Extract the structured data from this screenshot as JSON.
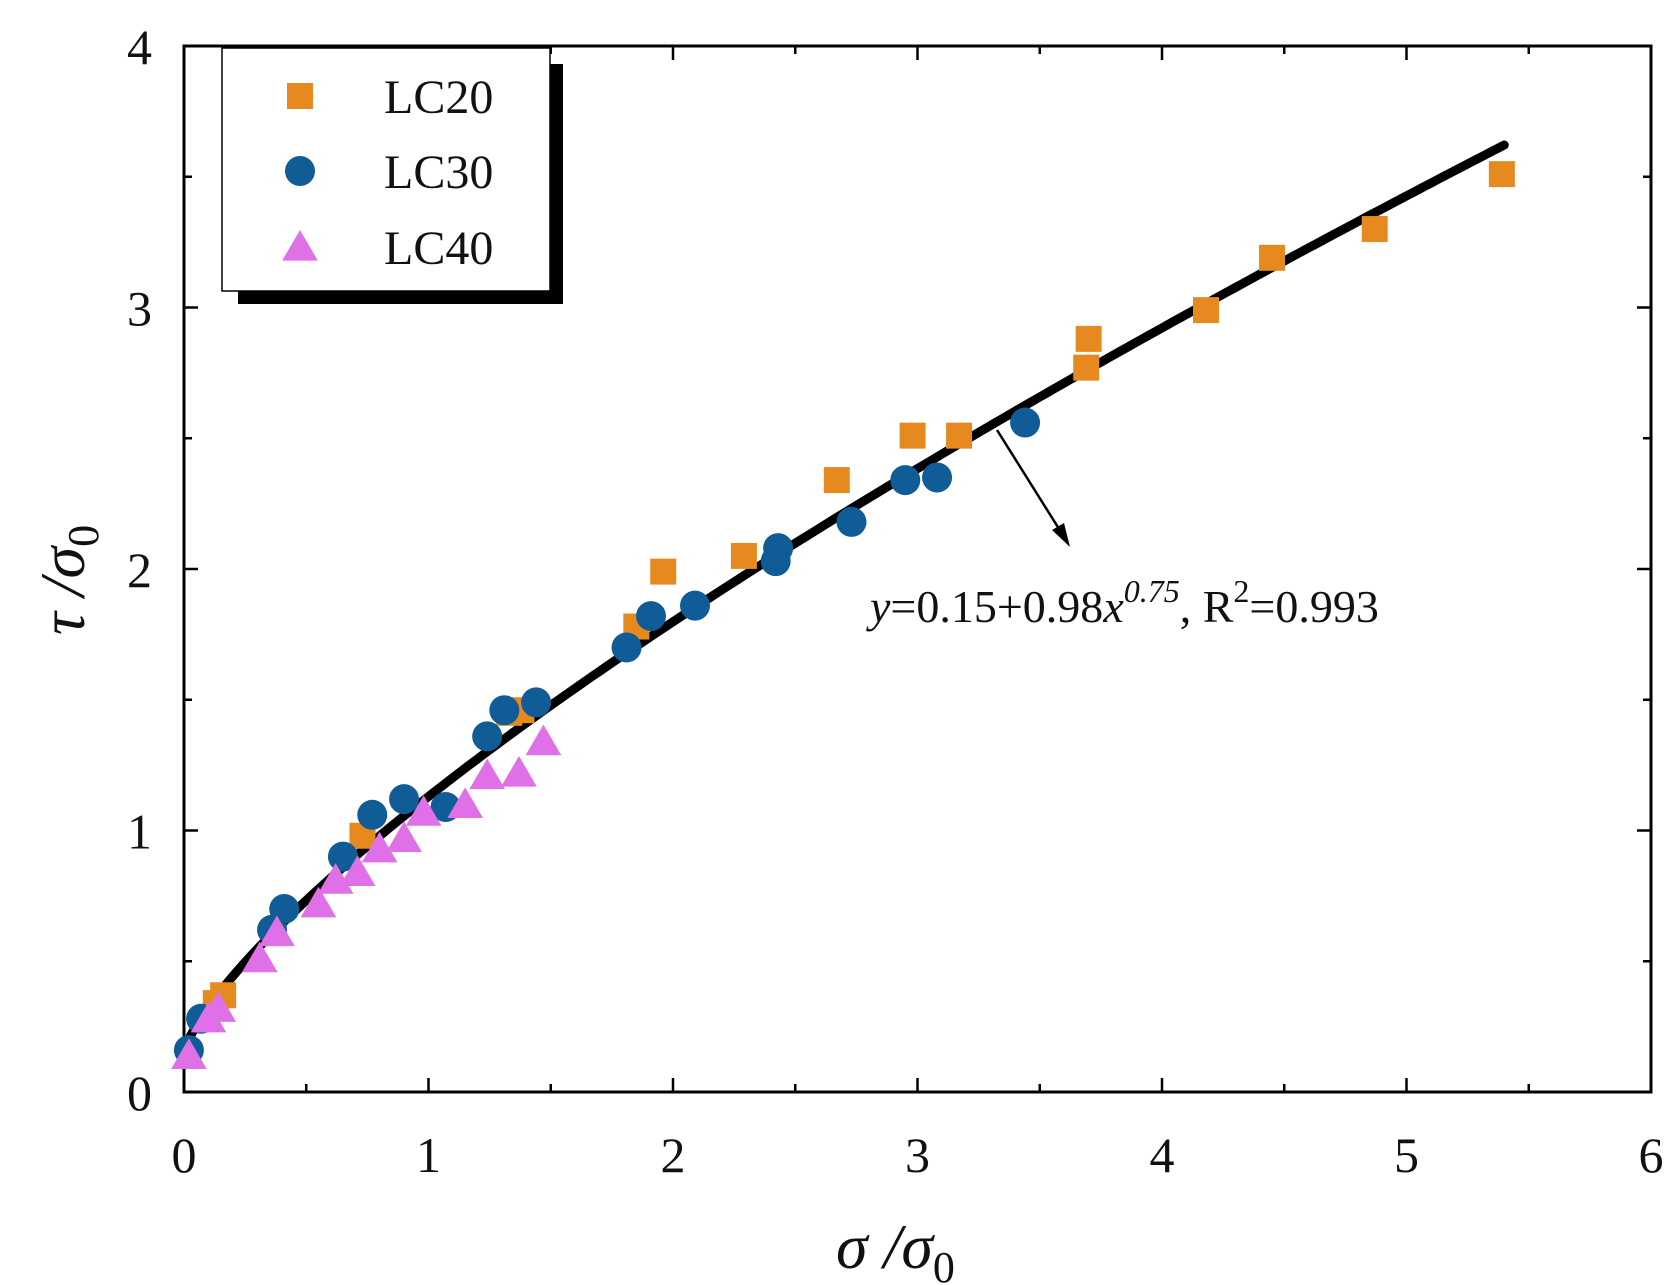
{
  "chart_data": {
    "type": "scatter",
    "xlabel": {
      "main": "σ /σ",
      "sub": "0"
    },
    "ylabel": {
      "main": "τ /σ",
      "sub": "0"
    },
    "xlim": [
      0,
      6
    ],
    "ylim": [
      0,
      4
    ],
    "xticks": [
      "0",
      "1",
      "2",
      "3",
      "4",
      "5",
      "6"
    ],
    "yticks": [
      "0",
      "1",
      "2",
      "3",
      "4"
    ],
    "grid": false,
    "legend_position": "top-left",
    "series": [
      {
        "name": "LC20",
        "marker": "square",
        "color": "#E68A20",
        "points": [
          [
            0.13,
            0.34
          ],
          [
            0.16,
            0.37
          ],
          [
            0.73,
            0.98
          ],
          [
            1.33,
            1.45
          ],
          [
            1.38,
            1.46
          ],
          [
            1.85,
            1.78
          ],
          [
            1.96,
            1.99
          ],
          [
            2.29,
            2.05
          ],
          [
            2.67,
            2.34
          ],
          [
            2.98,
            2.51
          ],
          [
            3.17,
            2.51
          ],
          [
            3.69,
            2.77
          ],
          [
            3.7,
            2.88
          ],
          [
            4.18,
            2.99
          ],
          [
            4.45,
            3.19
          ],
          [
            4.87,
            3.3
          ],
          [
            5.39,
            3.51
          ]
        ]
      },
      {
        "name": "LC30",
        "marker": "circle",
        "color": "#0F5C96",
        "points": [
          [
            0.02,
            0.16
          ],
          [
            0.07,
            0.28
          ],
          [
            0.36,
            0.62
          ],
          [
            0.41,
            0.7
          ],
          [
            0.65,
            0.9
          ],
          [
            0.77,
            1.06
          ],
          [
            0.9,
            1.12
          ],
          [
            1.07,
            1.09
          ],
          [
            1.24,
            1.36
          ],
          [
            1.31,
            1.46
          ],
          [
            1.44,
            1.49
          ],
          [
            1.81,
            1.7
          ],
          [
            1.91,
            1.82
          ],
          [
            2.09,
            1.86
          ],
          [
            2.42,
            2.03
          ],
          [
            2.43,
            2.08
          ],
          [
            2.73,
            2.18
          ],
          [
            2.95,
            2.34
          ],
          [
            3.08,
            2.35
          ],
          [
            3.44,
            2.56
          ]
        ]
      },
      {
        "name": "LC40",
        "marker": "triangle",
        "color": "#E070E8",
        "points": [
          [
            0.02,
            0.14
          ],
          [
            0.1,
            0.28
          ],
          [
            0.14,
            0.32
          ],
          [
            0.31,
            0.51
          ],
          [
            0.38,
            0.61
          ],
          [
            0.55,
            0.72
          ],
          [
            0.62,
            0.81
          ],
          [
            0.71,
            0.84
          ],
          [
            0.8,
            0.93
          ],
          [
            0.9,
            0.97
          ],
          [
            0.98,
            1.07
          ],
          [
            1.15,
            1.1
          ],
          [
            1.24,
            1.21
          ],
          [
            1.37,
            1.22
          ],
          [
            1.47,
            1.34
          ]
        ]
      }
    ],
    "fit": {
      "a": 0.15,
      "b": 0.98,
      "c": 0.75,
      "x_range": [
        0,
        5.4
      ],
      "color": "#000000",
      "equation": {
        "y": "y",
        "part1": "=0.15+0.98",
        "x": "x",
        "exp": "0.75",
        "part2": ", R",
        "r_exp": "2",
        "part3": "=0.993"
      }
    }
  }
}
